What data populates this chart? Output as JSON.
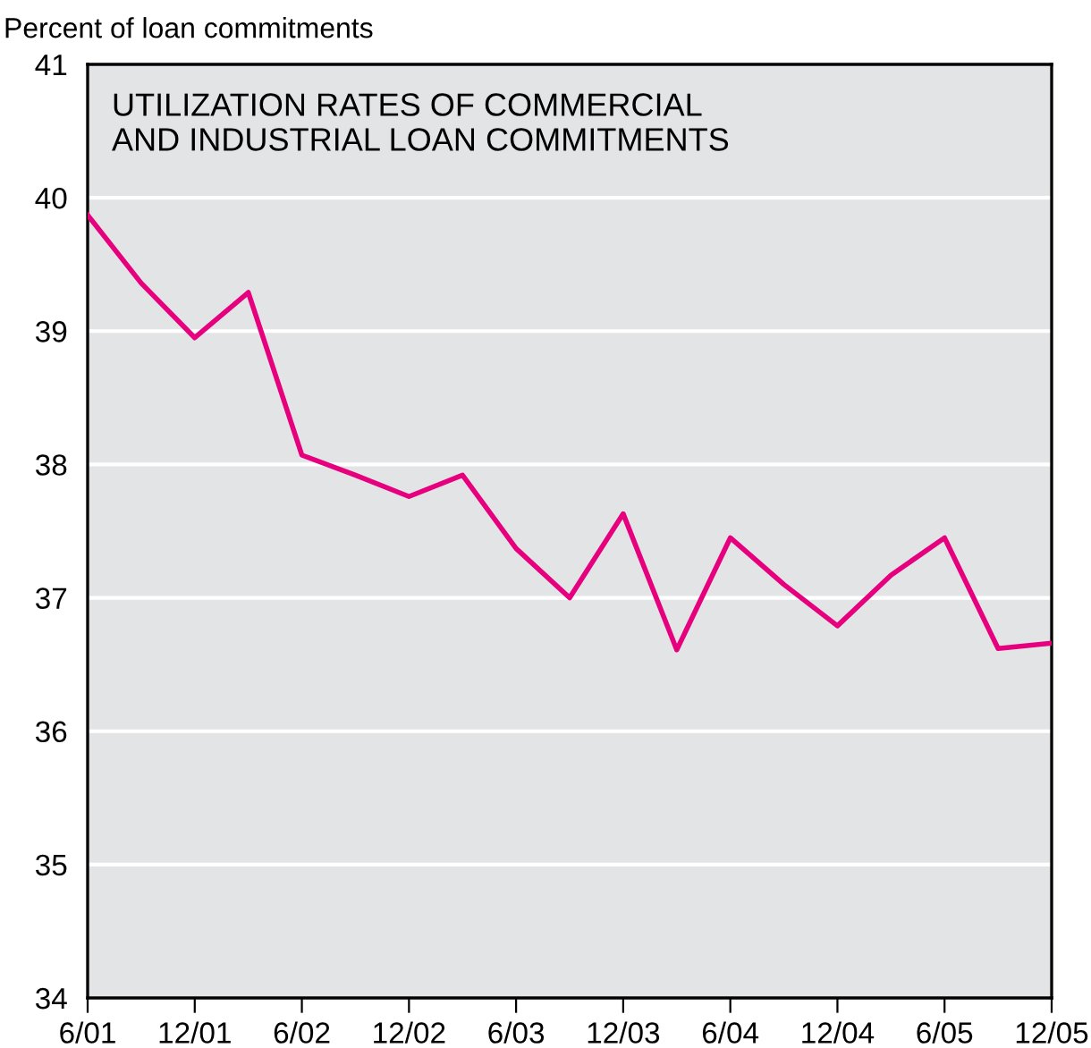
{
  "chart_data": {
    "type": "line",
    "title": "UTILIZATION RATES OF COMMERCIAL\nAND INDUSTRIAL LOAN COMMITMENTS",
    "ylabel": "Percent of loan commitments",
    "x": [
      "2001-06",
      "2001-09",
      "2001-12",
      "2002-03",
      "2002-06",
      "2002-09",
      "2002-12",
      "2003-03",
      "2003-06",
      "2003-09",
      "2003-12",
      "2004-03",
      "2004-06",
      "2004-09",
      "2004-12",
      "2005-03",
      "2005-06",
      "2005-09",
      "2005-12"
    ],
    "series": [
      {
        "color": "#e6007e",
        "values": [
          39.87,
          39.36,
          38.95,
          39.29,
          38.07,
          37.92,
          37.76,
          37.92,
          37.37,
          37.0,
          37.63,
          36.61,
          37.45,
          37.1,
          36.79,
          37.17,
          37.45,
          36.62,
          36.66
        ]
      }
    ],
    "xlim": [
      "2001-06",
      "2005-12"
    ],
    "xticks": [
      {
        "value": "2001-06",
        "label": "6/01"
      },
      {
        "value": "2001-12",
        "label": "12/01"
      },
      {
        "value": "2002-06",
        "label": "6/02"
      },
      {
        "value": "2002-12",
        "label": "12/02"
      },
      {
        "value": "2003-06",
        "label": "6/03"
      },
      {
        "value": "2003-12",
        "label": "12/03"
      },
      {
        "value": "2004-06",
        "label": "6/04"
      },
      {
        "value": "2004-12",
        "label": "12/04"
      },
      {
        "value": "2005-06",
        "label": "6/05"
      },
      {
        "value": "2005-12",
        "label": "12/05"
      }
    ],
    "ylim": [
      34,
      41
    ],
    "yticks": [
      34,
      35,
      36,
      37,
      38,
      39,
      40,
      41
    ],
    "grid": "y",
    "legend": false,
    "marker": "none",
    "line_style": "solid"
  }
}
